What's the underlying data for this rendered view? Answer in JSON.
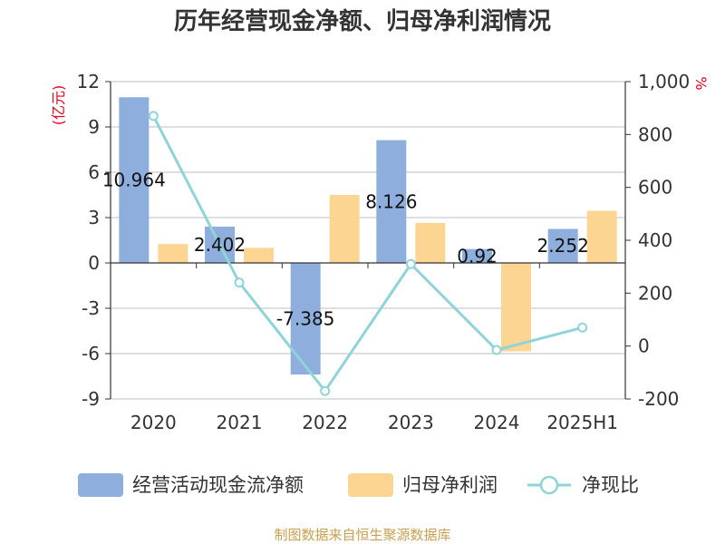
{
  "chart_data": {
    "type": "bar",
    "title": "历年经营现金净额、归母净利润情况",
    "categories": [
      "2020",
      "2021",
      "2022",
      "2023",
      "2024",
      "2025H1"
    ],
    "left_axis": {
      "unit_label": "(亿元)",
      "range": [
        -9,
        12
      ],
      "ticks": [
        12,
        9,
        6,
        3,
        0,
        -3,
        -6,
        -9
      ],
      "tick_labels": [
        "12",
        "9",
        "6",
        "3",
        "0",
        "-3",
        "-6",
        "-9"
      ]
    },
    "right_axis": {
      "unit_label": "%",
      "range": [
        -200,
        1000
      ],
      "ticks": [
        1000,
        800,
        600,
        400,
        200,
        0,
        -200
      ],
      "tick_labels": [
        "1,000",
        "800",
        "600",
        "400",
        "200",
        "0",
        "-200"
      ]
    },
    "grid": true,
    "series": [
      {
        "name": "经营活动现金流净额",
        "type": "bar",
        "axis": "left",
        "color": "#8eaede",
        "values": [
          10.964,
          2.402,
          -7.385,
          8.126,
          0.92,
          2.252
        ],
        "data_labels": [
          "10.964",
          "2.402",
          "-7.385",
          "8.126",
          "0.92",
          "2.252"
        ]
      },
      {
        "name": "归母净利润",
        "type": "bar",
        "axis": "left",
        "color": "#fdd593",
        "values": [
          1.25,
          1.0,
          4.5,
          2.65,
          -5.85,
          3.45
        ]
      },
      {
        "name": "净现比",
        "type": "line",
        "axis": "right",
        "color": "#8fd4d8",
        "values": [
          870,
          240,
          -170,
          310,
          -15,
          70
        ]
      }
    ],
    "legend": {
      "position": "bottom",
      "items": [
        "经营活动现金流净额",
        "归母净利润",
        "净现比"
      ]
    },
    "source": "制图数据来自恒生聚源数据库"
  }
}
